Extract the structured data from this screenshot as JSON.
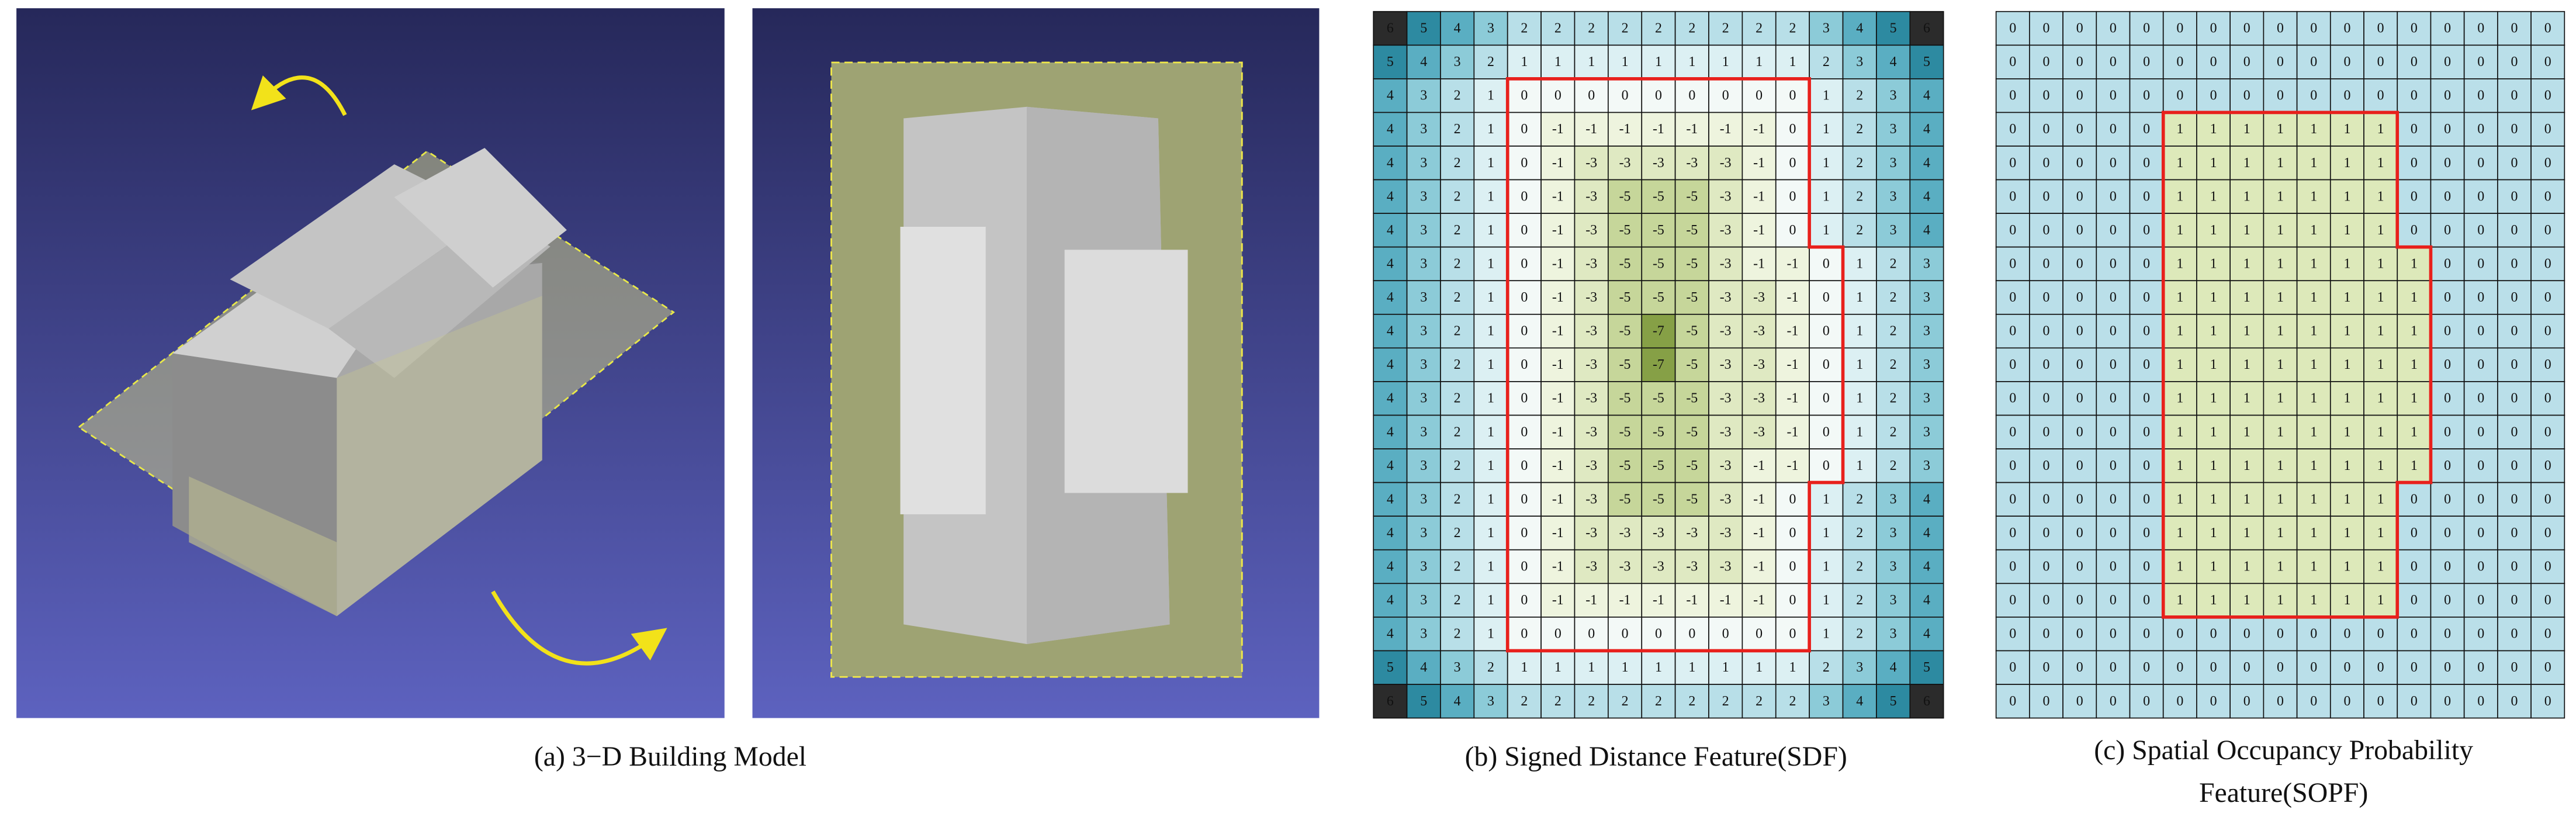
{
  "captions": {
    "a": "(a) 3−D Building Model",
    "b": "(b) Signed Distance Feature(SDF)",
    "c_line1": "(c) Spatial Occupancy Probability",
    "c_line2": "Feature(SOPF)"
  },
  "sdf": {
    "rows": [
      [
        6,
        5,
        4,
        3,
        2,
        2,
        2,
        2,
        2,
        2,
        2,
        2,
        2,
        3,
        4,
        5,
        6
      ],
      [
        5,
        4,
        3,
        2,
        1,
        1,
        1,
        1,
        1,
        1,
        1,
        1,
        1,
        2,
        3,
        4,
        5
      ],
      [
        4,
        3,
        2,
        1,
        0,
        0,
        0,
        0,
        0,
        0,
        0,
        0,
        0,
        1,
        2,
        3,
        4
      ],
      [
        4,
        3,
        2,
        1,
        0,
        -1,
        -1,
        -1,
        -1,
        -1,
        -1,
        -1,
        0,
        1,
        2,
        3,
        4
      ],
      [
        4,
        3,
        2,
        1,
        0,
        -1,
        -3,
        -3,
        -3,
        -3,
        -3,
        -1,
        0,
        1,
        2,
        3,
        4
      ],
      [
        4,
        3,
        2,
        1,
        0,
        -1,
        -3,
        -5,
        -5,
        -5,
        -3,
        -1,
        0,
        1,
        2,
        3,
        4
      ],
      [
        4,
        3,
        2,
        1,
        0,
        -1,
        -3,
        -5,
        -5,
        -5,
        -3,
        -1,
        0,
        1,
        2,
        3,
        4
      ],
      [
        4,
        3,
        2,
        1,
        0,
        -1,
        -3,
        -5,
        -5,
        -5,
        -3,
        -1,
        -1,
        0,
        1,
        2,
        3
      ],
      [
        4,
        3,
        2,
        1,
        0,
        -1,
        -3,
        -5,
        -5,
        -5,
        -3,
        -3,
        -1,
        0,
        1,
        2,
        3
      ],
      [
        4,
        3,
        2,
        1,
        0,
        -1,
        -3,
        -5,
        -7,
        -5,
        -3,
        -3,
        -1,
        0,
        1,
        2,
        3
      ],
      [
        4,
        3,
        2,
        1,
        0,
        -1,
        -3,
        -5,
        -7,
        -5,
        -3,
        -3,
        -1,
        0,
        1,
        2,
        3
      ],
      [
        4,
        3,
        2,
        1,
        0,
        -1,
        -3,
        -5,
        -5,
        -5,
        -3,
        -3,
        -1,
        0,
        1,
        2,
        3
      ],
      [
        4,
        3,
        2,
        1,
        0,
        -1,
        -3,
        -5,
        -5,
        -5,
        -3,
        -3,
        -1,
        0,
        1,
        2,
        3
      ],
      [
        4,
        3,
        2,
        1,
        0,
        -1,
        -3,
        -5,
        -5,
        -5,
        -3,
        -1,
        -1,
        0,
        1,
        2,
        3
      ],
      [
        4,
        3,
        2,
        1,
        0,
        -1,
        -3,
        -5,
        -5,
        -5,
        -3,
        -1,
        0,
        1,
        2,
        3,
        4
      ],
      [
        4,
        3,
        2,
        1,
        0,
        -1,
        -3,
        -3,
        -3,
        -3,
        -3,
        -1,
        0,
        1,
        2,
        3,
        4
      ],
      [
        4,
        3,
        2,
        1,
        0,
        -1,
        -3,
        -3,
        -3,
        -3,
        -3,
        -1,
        0,
        1,
        2,
        3,
        4
      ],
      [
        4,
        3,
        2,
        1,
        0,
        -1,
        -1,
        -1,
        -1,
        -1,
        -1,
        -1,
        0,
        1,
        2,
        3,
        4
      ],
      [
        4,
        3,
        2,
        1,
        0,
        0,
        0,
        0,
        0,
        0,
        0,
        0,
        0,
        1,
        2,
        3,
        4
      ],
      [
        5,
        4,
        3,
        2,
        1,
        1,
        1,
        1,
        1,
        1,
        1,
        1,
        1,
        2,
        3,
        4,
        5
      ],
      [
        6,
        5,
        4,
        3,
        2,
        2,
        2,
        2,
        2,
        2,
        2,
        2,
        2,
        3,
        4,
        5,
        6
      ]
    ]
  },
  "sopf": {
    "rows": [
      [
        0,
        0,
        0,
        0,
        0,
        0,
        0,
        0,
        0,
        0,
        0,
        0,
        0,
        0,
        0,
        0,
        0
      ],
      [
        0,
        0,
        0,
        0,
        0,
        0,
        0,
        0,
        0,
        0,
        0,
        0,
        0,
        0,
        0,
        0,
        0
      ],
      [
        0,
        0,
        0,
        0,
        0,
        0,
        0,
        0,
        0,
        0,
        0,
        0,
        0,
        0,
        0,
        0,
        0
      ],
      [
        0,
        0,
        0,
        0,
        0,
        1,
        1,
        1,
        1,
        1,
        1,
        1,
        0,
        0,
        0,
        0,
        0
      ],
      [
        0,
        0,
        0,
        0,
        0,
        1,
        1,
        1,
        1,
        1,
        1,
        1,
        0,
        0,
        0,
        0,
        0
      ],
      [
        0,
        0,
        0,
        0,
        0,
        1,
        1,
        1,
        1,
        1,
        1,
        1,
        0,
        0,
        0,
        0,
        0
      ],
      [
        0,
        0,
        0,
        0,
        0,
        1,
        1,
        1,
        1,
        1,
        1,
        1,
        0,
        0,
        0,
        0,
        0
      ],
      [
        0,
        0,
        0,
        0,
        0,
        1,
        1,
        1,
        1,
        1,
        1,
        1,
        1,
        0,
        0,
        0,
        0
      ],
      [
        0,
        0,
        0,
        0,
        0,
        1,
        1,
        1,
        1,
        1,
        1,
        1,
        1,
        0,
        0,
        0,
        0
      ],
      [
        0,
        0,
        0,
        0,
        0,
        1,
        1,
        1,
        1,
        1,
        1,
        1,
        1,
        0,
        0,
        0,
        0
      ],
      [
        0,
        0,
        0,
        0,
        0,
        1,
        1,
        1,
        1,
        1,
        1,
        1,
        1,
        0,
        0,
        0,
        0
      ],
      [
        0,
        0,
        0,
        0,
        0,
        1,
        1,
        1,
        1,
        1,
        1,
        1,
        1,
        0,
        0,
        0,
        0
      ],
      [
        0,
        0,
        0,
        0,
        0,
        1,
        1,
        1,
        1,
        1,
        1,
        1,
        1,
        0,
        0,
        0,
        0
      ],
      [
        0,
        0,
        0,
        0,
        0,
        1,
        1,
        1,
        1,
        1,
        1,
        1,
        1,
        0,
        0,
        0,
        0
      ],
      [
        0,
        0,
        0,
        0,
        0,
        1,
        1,
        1,
        1,
        1,
        1,
        1,
        0,
        0,
        0,
        0,
        0
      ],
      [
        0,
        0,
        0,
        0,
        0,
        1,
        1,
        1,
        1,
        1,
        1,
        1,
        0,
        0,
        0,
        0,
        0
      ],
      [
        0,
        0,
        0,
        0,
        0,
        1,
        1,
        1,
        1,
        1,
        1,
        1,
        0,
        0,
        0,
        0,
        0
      ],
      [
        0,
        0,
        0,
        0,
        0,
        1,
        1,
        1,
        1,
        1,
        1,
        1,
        0,
        0,
        0,
        0,
        0
      ],
      [
        0,
        0,
        0,
        0,
        0,
        0,
        0,
        0,
        0,
        0,
        0,
        0,
        0,
        0,
        0,
        0,
        0
      ],
      [
        0,
        0,
        0,
        0,
        0,
        0,
        0,
        0,
        0,
        0,
        0,
        0,
        0,
        0,
        0,
        0,
        0
      ],
      [
        0,
        0,
        0,
        0,
        0,
        0,
        0,
        0,
        0,
        0,
        0,
        0,
        0,
        0,
        0,
        0,
        0
      ]
    ]
  }
}
